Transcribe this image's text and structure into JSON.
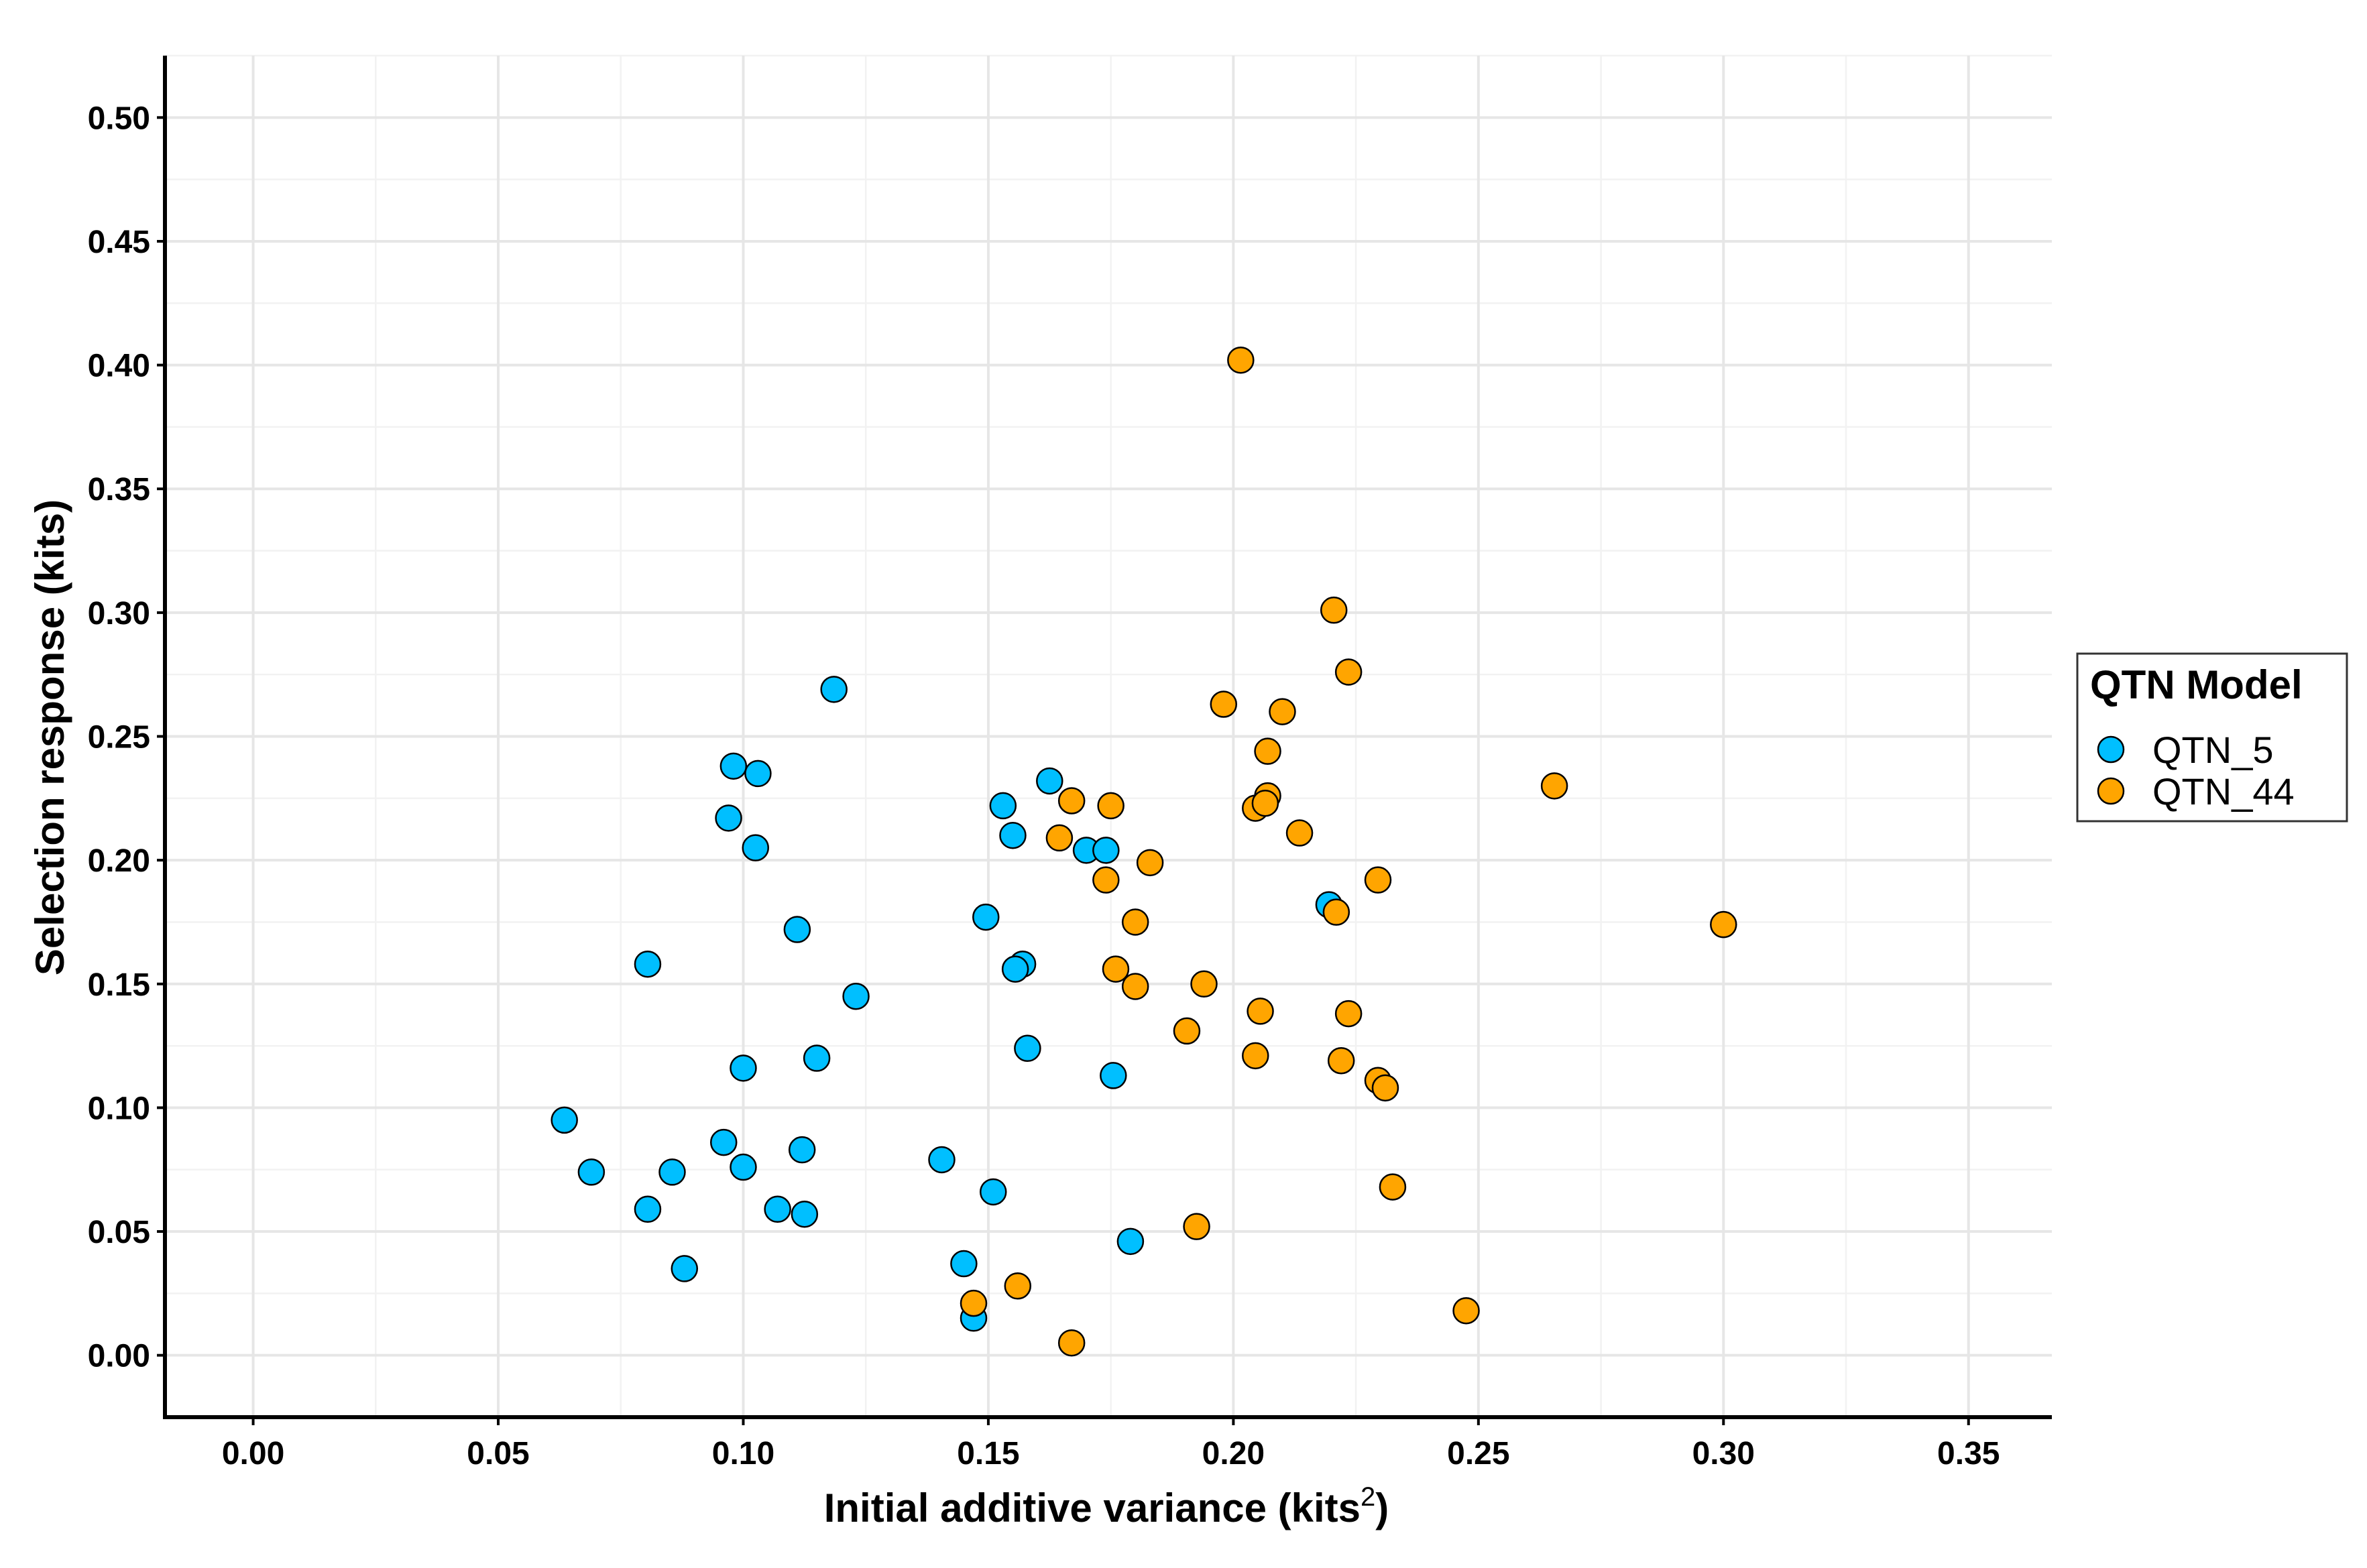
{
  "chart_data": {
    "type": "scatter",
    "xlabel": "Initial additive variance (kits",
    "xlabel_superscript": "2",
    "xlabel_suffix": ")",
    "ylabel": "Selection response (kits)",
    "xlim": [
      -0.018,
      0.367
    ],
    "ylim": [
      -0.025,
      0.525
    ],
    "x_ticks": [
      0.0,
      0.05,
      0.1,
      0.15,
      0.2,
      0.25,
      0.3,
      0.35
    ],
    "y_ticks": [
      0.0,
      0.05,
      0.1,
      0.15,
      0.2,
      0.25,
      0.3,
      0.35,
      0.4,
      0.45,
      0.5
    ],
    "x_tick_labels": [
      "0.00",
      "0.05",
      "0.10",
      "0.15",
      "0.20",
      "0.25",
      "0.30",
      "0.35"
    ],
    "y_tick_labels": [
      "0.00",
      "0.05",
      "0.10",
      "0.15",
      "0.20",
      "0.25",
      "0.30",
      "0.35",
      "0.40",
      "0.45",
      "0.50"
    ],
    "grid": true,
    "legend": {
      "title": "QTN Model",
      "position": "right"
    },
    "series": [
      {
        "name": "QTN_5",
        "color": "#00bfff",
        "points": [
          [
            0.1185,
            0.269
          ],
          [
            0.098,
            0.238
          ],
          [
            0.103,
            0.235
          ],
          [
            0.097,
            0.217
          ],
          [
            0.1025,
            0.205
          ],
          [
            0.1625,
            0.232
          ],
          [
            0.153,
            0.222
          ],
          [
            0.155,
            0.21
          ],
          [
            0.17,
            0.204
          ],
          [
            0.174,
            0.204
          ],
          [
            0.2195,
            0.182
          ],
          [
            0.1495,
            0.177
          ],
          [
            0.111,
            0.172
          ],
          [
            0.0805,
            0.158
          ],
          [
            0.157,
            0.158
          ],
          [
            0.1555,
            0.156
          ],
          [
            0.123,
            0.145
          ],
          [
            0.158,
            0.124
          ],
          [
            0.115,
            0.12
          ],
          [
            0.1,
            0.116
          ],
          [
            0.1755,
            0.113
          ],
          [
            0.0635,
            0.095
          ],
          [
            0.096,
            0.086
          ],
          [
            0.112,
            0.083
          ],
          [
            0.1405,
            0.079
          ],
          [
            0.069,
            0.074
          ],
          [
            0.0855,
            0.074
          ],
          [
            0.1,
            0.076
          ],
          [
            0.151,
            0.066
          ],
          [
            0.0805,
            0.059
          ],
          [
            0.107,
            0.059
          ],
          [
            0.1125,
            0.057
          ],
          [
            0.179,
            0.046
          ],
          [
            0.088,
            0.035
          ],
          [
            0.145,
            0.037
          ],
          [
            0.147,
            0.015
          ]
        ]
      },
      {
        "name": "QTN_44",
        "color": "#ffa500",
        "points": [
          [
            0.2015,
            0.402
          ],
          [
            0.2205,
            0.301
          ],
          [
            0.2235,
            0.276
          ],
          [
            0.198,
            0.263
          ],
          [
            0.21,
            0.26
          ],
          [
            0.207,
            0.244
          ],
          [
            0.2655,
            0.23
          ],
          [
            0.167,
            0.224
          ],
          [
            0.175,
            0.222
          ],
          [
            0.207,
            0.226
          ],
          [
            0.2045,
            0.221
          ],
          [
            0.2065,
            0.223
          ],
          [
            0.2135,
            0.211
          ],
          [
            0.1645,
            0.209
          ],
          [
            0.183,
            0.199
          ],
          [
            0.174,
            0.192
          ],
          [
            0.2295,
            0.192
          ],
          [
            0.221,
            0.179
          ],
          [
            0.18,
            0.175
          ],
          [
            0.3,
            0.174
          ],
          [
            0.176,
            0.156
          ],
          [
            0.18,
            0.149
          ],
          [
            0.194,
            0.15
          ],
          [
            0.2055,
            0.139
          ],
          [
            0.2235,
            0.138
          ],
          [
            0.1905,
            0.131
          ],
          [
            0.2045,
            0.121
          ],
          [
            0.222,
            0.119
          ],
          [
            0.2295,
            0.111
          ],
          [
            0.231,
            0.108
          ],
          [
            0.2325,
            0.068
          ],
          [
            0.1925,
            0.052
          ],
          [
            0.156,
            0.028
          ],
          [
            0.147,
            0.021
          ],
          [
            0.2475,
            0.018
          ],
          [
            0.167,
            0.005
          ]
        ]
      }
    ]
  }
}
